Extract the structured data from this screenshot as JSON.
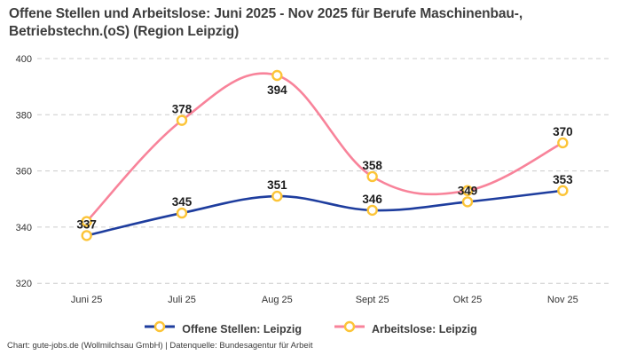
{
  "title": "Offene Stellen und Arbeitslose: Juni 2025 - Nov 2025 für Berufe Maschinenbau-,\nBetriebstechn.(oS) (Region Leipzig)",
  "footer": "Chart: gute-jobs.de (Wollmilchsau GmbH) | Datenquelle: Bundesagentur für Arbeit",
  "colors": {
    "background": "#ffffff",
    "title_text": "#3d3d3d",
    "tick_text": "#333333",
    "data_label_text": "#1c1c1c",
    "gridline": "#cccccc",
    "marker_stroke": "#fcc437",
    "marker_fill": "#ffffff",
    "series_blue": "#1e3d9e",
    "series_pink": "#f8839a"
  },
  "chart_data": {
    "type": "line",
    "title": "Offene Stellen und Arbeitslose: Juni 2025 - Nov 2025 für Berufe Maschinenbau-, Betriebstechn.(oS) (Region Leipzig)",
    "categories": [
      "Juni 25",
      "Juli 25",
      "Aug 25",
      "Sept 25",
      "Okt 25",
      "Nov 25"
    ],
    "ylim": [
      320,
      400
    ],
    "yticks": [
      320,
      340,
      360,
      380,
      400
    ],
    "grid": "horizontal-dashed",
    "legend_position": "bottom",
    "line_style": "smooth",
    "series": [
      {
        "name": "Offene Stellen: Leipzig",
        "color": "#1e3d9e",
        "values": [
          337,
          345,
          351,
          346,
          349,
          353
        ],
        "labels": [
          "337",
          "345",
          "351",
          "346",
          "349",
          "353"
        ],
        "label_positions": [
          "above",
          "above",
          "above",
          "above",
          "above",
          "above"
        ]
      },
      {
        "name": "Arbeitslose: Leipzig",
        "color": "#f8839a",
        "values": [
          342,
          378,
          394,
          358,
          353,
          370
        ],
        "labels": [
          null,
          "378",
          "394",
          "358",
          null,
          "370"
        ],
        "label_positions": [
          "above",
          "above",
          "below",
          "above",
          "above",
          "above"
        ]
      }
    ]
  }
}
